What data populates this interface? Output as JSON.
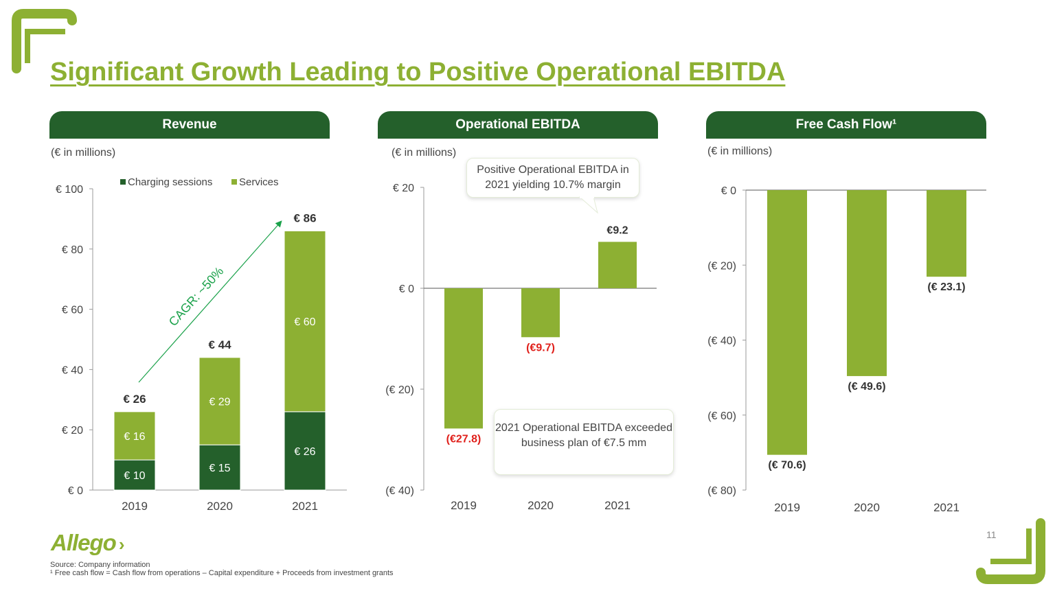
{
  "title": "Significant Growth Leading to Positive Operational EBITDA",
  "footer": {
    "logo": "Allego",
    "source": "Source: Company information",
    "footnote": "¹ Free cash flow = Cash flow from operations – Capital expenditure + Proceeds from investment grants",
    "page_number": "11"
  },
  "colors": {
    "dark_green": "#24602b",
    "light_green": "#8db033",
    "negative_red": "#e0201b"
  },
  "panels": {
    "revenue": {
      "header": "Revenue",
      "units": "(€ in millions)"
    },
    "ebitda": {
      "header": "Operational EBITDA",
      "units": "(€ in millions)",
      "callout_top": "Positive Operational EBITDA in 2021 yielding 10.7% margin",
      "callout_bottom": "2021 Operational EBITDA exceeded business plan of €7.5 mm"
    },
    "fcf": {
      "header": "Free Cash Flow¹",
      "units": "(€ in millions)"
    }
  },
  "chart_data": [
    {
      "type": "bar",
      "stacked": true,
      "title": "Revenue",
      "categories": [
        "2019",
        "2020",
        "2021"
      ],
      "series": [
        {
          "name": "Charging sessions",
          "values": [
            10,
            15,
            26
          ],
          "labels": [
            "€ 10",
            "€ 15",
            "€ 26"
          ]
        },
        {
          "name": "Services",
          "values": [
            16,
            29,
            60
          ],
          "labels": [
            "€ 16",
            "€ 29",
            "€ 60"
          ]
        }
      ],
      "totals": [
        26,
        44,
        86
      ],
      "total_labels": [
        "€ 26",
        "€ 44",
        "€ 86"
      ],
      "ylim": [
        0,
        100
      ],
      "yticks": [
        0,
        20,
        40,
        60,
        80,
        100
      ],
      "ytick_labels": [
        "€ 0",
        "€ 20",
        "€ 40",
        "€ 60",
        "€ 80",
        "€ 100"
      ],
      "annotation": "CAGR: ~50%",
      "legend": "top"
    },
    {
      "type": "bar",
      "title": "Operational EBITDA",
      "categories": [
        "2019",
        "2020",
        "2021"
      ],
      "values": [
        -27.8,
        -9.7,
        9.2
      ],
      "value_labels": [
        "(€27.8)",
        "(€9.7)",
        "€9.2"
      ],
      "ylim": [
        -40,
        20
      ],
      "yticks": [
        20,
        0,
        -20,
        -40
      ],
      "ytick_labels": [
        "€ 20",
        "€ 0",
        "(€ 20)",
        "(€ 40)"
      ]
    },
    {
      "type": "bar",
      "title": "Free Cash Flow",
      "categories": [
        "2019",
        "2020",
        "2021"
      ],
      "values": [
        -70.6,
        -49.6,
        -23.1
      ],
      "value_labels": [
        "(€ 70.6)",
        "(€ 49.6)",
        "(€ 23.1)"
      ],
      "ylim": [
        -80,
        0
      ],
      "yticks": [
        0,
        -20,
        -40,
        -60,
        -80
      ],
      "ytick_labels": [
        "€ 0",
        "(€ 20)",
        "(€ 40)",
        "(€ 60)",
        "(€ 80)"
      ]
    }
  ]
}
